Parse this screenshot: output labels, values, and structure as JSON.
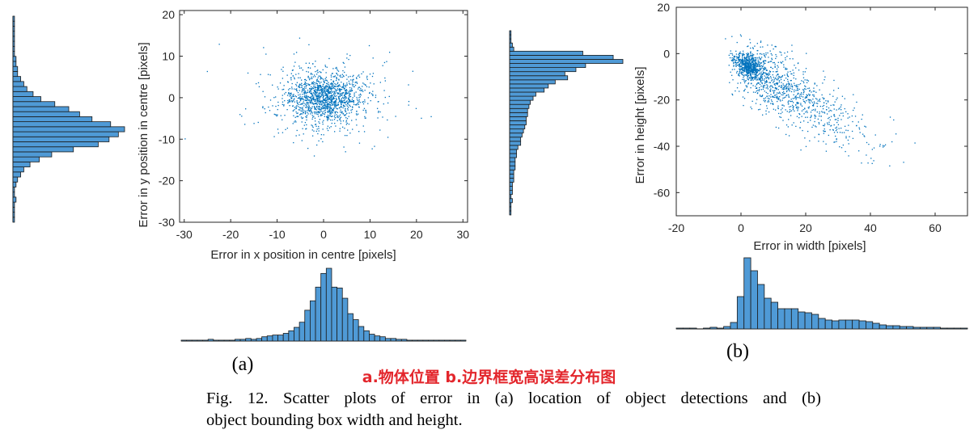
{
  "figure": {
    "sub_a": "(a)",
    "sub_b": "(b)",
    "annotation_cn": "a.物体位置  b.边界框宽高误差分布图",
    "caption_line1": "Fig. 12.  Scatter plots of error in (a) location of object detections and (b)",
    "caption_line2": "object bounding box width and height.",
    "marker_color": "#0072bd",
    "bar_color": "#4f9ad6"
  },
  "chart_data": [
    {
      "id": "a_scatter",
      "type": "scatter",
      "xlabel": "Error in x position in centre [pixels]",
      "ylabel": "Error in y position in centre [pixels]",
      "xlim": [
        -31,
        31
      ],
      "ylim": [
        -30,
        21
      ],
      "xticks": [
        -30,
        -20,
        -10,
        0,
        10,
        20,
        30
      ],
      "yticks": [
        -30,
        -20,
        -10,
        0,
        10,
        20
      ],
      "distribution": {
        "center": [
          0,
          0
        ],
        "sd_x": 7,
        "sd_y": 5.5,
        "n_points": 1500
      }
    },
    {
      "id": "a_hist_x",
      "type": "bar",
      "x_range": [
        -30,
        30
      ],
      "values": [
        1,
        1,
        1,
        1,
        1,
        2,
        1,
        1,
        1,
        1,
        2,
        2,
        3,
        2,
        3,
        5,
        6,
        7,
        7,
        9,
        12,
        16,
        22,
        36,
        47,
        63,
        79,
        85,
        63,
        62,
        50,
        32,
        25,
        17,
        12,
        8,
        6,
        5,
        3,
        3,
        2,
        2,
        1,
        1,
        1,
        1,
        1,
        1,
        1,
        1,
        1,
        1,
        1
      ]
    },
    {
      "id": "a_hist_y",
      "type": "bar",
      "orientation": "horizontal",
      "y_range": [
        -30,
        21
      ],
      "values": [
        1,
        1,
        1,
        1,
        2,
        1,
        1,
        2,
        3,
        5,
        7,
        11,
        17,
        25,
        39,
        55,
        62,
        68,
        72,
        63,
        51,
        43,
        36,
        27,
        18,
        13,
        9,
        7,
        5,
        3,
        3,
        2,
        2,
        1,
        1,
        1,
        1,
        1,
        1,
        1,
        1
      ]
    },
    {
      "id": "b_scatter",
      "type": "scatter",
      "xlabel": "Error in width [pixels]",
      "ylabel": "Error in height [pixels]",
      "xlim": [
        -20,
        70
      ],
      "ylim": [
        -70,
        20
      ],
      "xticks": [
        -20,
        0,
        20,
        40,
        60
      ],
      "yticks": [
        -60,
        -40,
        -20,
        0,
        20
      ],
      "distribution": {
        "dense_cluster": [
          2,
          -5
        ],
        "spread_direction": "down-right",
        "n_points": 1500
      }
    },
    {
      "id": "b_hist_w",
      "type": "bar",
      "x_range": [
        -20,
        70
      ],
      "values": [
        1,
        1,
        1,
        0,
        1,
        2,
        1,
        3,
        8,
        40,
        88,
        72,
        55,
        38,
        33,
        25,
        25,
        25,
        21,
        20,
        18,
        13,
        11,
        10,
        11,
        11,
        11,
        10,
        9,
        7,
        5,
        4,
        4,
        3,
        3,
        2,
        2,
        2,
        2,
        1,
        1,
        1,
        1
      ]
    },
    {
      "id": "b_hist_h",
      "type": "bar",
      "orientation": "horizontal",
      "y_range": [
        -70,
        20
      ],
      "values": [
        1,
        1,
        1,
        2,
        1,
        2,
        2,
        2,
        3,
        3,
        3,
        4,
        4,
        4,
        5,
        5,
        6,
        8,
        8,
        9,
        10,
        11,
        12,
        12,
        13,
        13,
        14,
        15,
        17,
        19,
        25,
        28,
        33,
        42,
        40,
        48,
        55,
        82,
        75,
        53,
        3,
        2,
        1,
        1,
        1
      ]
    }
  ]
}
